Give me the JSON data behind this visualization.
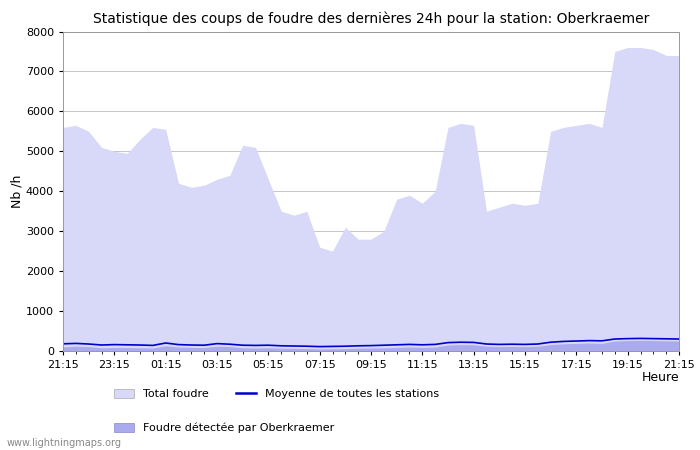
{
  "title": "Statistique des coups de foudre des dernières 24h pour la station: Oberkraemer",
  "ylabel": "Nb /h",
  "x_ticks": [
    "21:15",
    "23:15",
    "01:15",
    "03:15",
    "05:15",
    "07:15",
    "09:15",
    "11:15",
    "13:15",
    "15:15",
    "17:15",
    "19:15",
    "21:15"
  ],
  "ylim": [
    0,
    8000
  ],
  "yticks": [
    0,
    1000,
    2000,
    3000,
    4000,
    5000,
    6000,
    7000,
    8000
  ],
  "watermark": "www.lightningmaps.org",
  "legend_items": [
    {
      "label": "Total foudre",
      "color": "#d8d8f8",
      "type": "patch"
    },
    {
      "label": "Moyenne de toutes les stations",
      "color": "#0000cc",
      "type": "line"
    },
    {
      "label": "Foudre détectée par Oberkraemer",
      "color": "#aaaaee",
      "type": "patch"
    }
  ],
  "total_foudre_color": "#d8d8f8",
  "detected_color": "#aaaaee",
  "mean_color": "#0000cc",
  "background_color": "#ffffff",
  "grid_color": "#bbbbbb",
  "x_values": [
    0,
    1,
    2,
    3,
    4,
    5,
    6,
    7,
    8,
    9,
    10,
    11,
    12,
    13,
    14,
    15,
    16,
    17,
    18,
    19,
    20,
    21,
    22,
    23,
    24,
    25,
    26,
    27,
    28,
    29,
    30,
    31,
    32,
    33,
    34,
    35,
    36,
    37,
    38,
    39,
    40,
    41,
    42,
    43,
    44,
    45,
    46,
    47,
    48
  ],
  "total_foudre_y": [
    5600,
    5650,
    5500,
    5100,
    5000,
    4950,
    5300,
    5600,
    5550,
    4200,
    4100,
    4150,
    4300,
    4400,
    5150,
    5100,
    4300,
    3500,
    3400,
    3500,
    2600,
    2500,
    3100,
    2800,
    2800,
    3000,
    3800,
    3900,
    3700,
    4000,
    5600,
    5700,
    5650,
    3500,
    3600,
    3700,
    3650,
    3700,
    5500,
    5600,
    5650,
    5700,
    5600,
    7500,
    7600,
    7600,
    7550,
    7400,
    7400
  ],
  "detected_y": [
    100,
    120,
    110,
    80,
    90,
    85,
    80,
    75,
    130,
    100,
    90,
    85,
    120,
    110,
    80,
    75,
    80,
    70,
    65,
    60,
    50,
    55,
    60,
    70,
    75,
    80,
    90,
    100,
    90,
    100,
    150,
    160,
    155,
    120,
    110,
    115,
    110,
    120,
    160,
    180,
    190,
    200,
    190,
    250,
    260,
    265,
    260,
    255,
    250
  ],
  "mean_y": [
    180,
    190,
    175,
    150,
    160,
    155,
    150,
    140,
    200,
    160,
    150,
    145,
    185,
    170,
    145,
    140,
    145,
    130,
    125,
    120,
    110,
    115,
    120,
    130,
    135,
    145,
    155,
    165,
    155,
    165,
    210,
    220,
    215,
    175,
    165,
    170,
    165,
    175,
    220,
    240,
    250,
    260,
    255,
    300,
    310,
    315,
    310,
    305,
    300
  ]
}
